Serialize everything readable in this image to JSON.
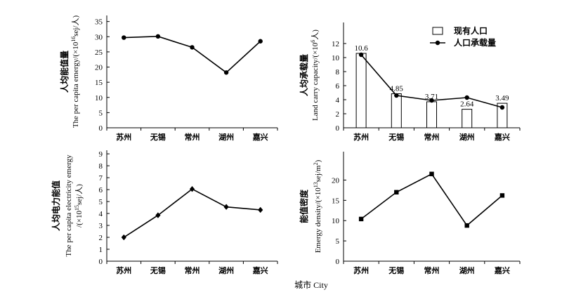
{
  "chart_data": [
    {
      "type": "line",
      "categories": [
        "苏州",
        "无锡",
        "常州",
        "湖州",
        "嘉兴"
      ],
      "series": [
        {
          "values": [
            29.7,
            30.1,
            26.5,
            18.2,
            28.5
          ],
          "marker": "circle"
        }
      ],
      "ylabel_cn": "人均能值量",
      "ylabel_en": "The per capita emergy/(×10",
      "ylabel_exp": "16",
      "ylabel_unit": "sej/人)",
      "ylim": [
        0,
        37
      ],
      "yticks": [
        0,
        5,
        10,
        15,
        20,
        25,
        30,
        35
      ]
    },
    {
      "type": "bar",
      "categories": [
        "苏州",
        "无锡",
        "常州",
        "湖州",
        "嘉兴"
      ],
      "series": [
        {
          "name": "现有人口",
          "type": "bar",
          "values": [
            10.6,
            4.85,
            3.71,
            2.64,
            3.49
          ],
          "data_labels": [
            "10.6",
            "4.85",
            "3.71",
            "2.64",
            "3.49"
          ]
        },
        {
          "name": "人口承载量",
          "type": "line",
          "values": [
            10.4,
            4.6,
            3.9,
            4.3,
            2.9
          ],
          "marker": "circle"
        }
      ],
      "ylabel_cn": "人均承载量",
      "ylabel_en": "Land carry capacity/(×10",
      "ylabel_exp": "6",
      "ylabel_unit": "人)",
      "ylim": [
        0,
        15
      ],
      "yticks": [
        0,
        2,
        4,
        6,
        8,
        10,
        12
      ],
      "legend": "top-right"
    },
    {
      "type": "line",
      "categories": [
        "苏州",
        "无锡",
        "常州",
        "湖州",
        "嘉兴"
      ],
      "series": [
        {
          "values": [
            2.0,
            3.85,
            6.05,
            4.55,
            4.3
          ],
          "marker": "diamond"
        }
      ],
      "ylabel_cn": "人均电力能值",
      "ylabel_en": "The per capita electricity emergy",
      "ylabel_en2": "/(×10",
      "ylabel_exp": "15",
      "ylabel_unit": "sej/人)",
      "ylim": [
        0,
        9.3
      ],
      "yticks": [
        0,
        1,
        2,
        3,
        4,
        5,
        6,
        7,
        8,
        9
      ]
    },
    {
      "type": "line",
      "categories": [
        "苏州",
        "无锡",
        "常州",
        "湖州",
        "嘉兴"
      ],
      "series": [
        {
          "values": [
            10.4,
            17.0,
            21.5,
            8.8,
            16.2
          ],
          "marker": "square"
        }
      ],
      "ylabel_cn": "能值密度",
      "ylabel_en": "Emergy density/(×10",
      "ylabel_exp": "13",
      "ylabel_unit": "sej/m",
      "ylabel_exp2": "2",
      "ylabel_tail": ")",
      "ylim": [
        0,
        27
      ],
      "yticks": [
        0,
        5,
        10,
        15,
        20
      ]
    }
  ],
  "xtitle": "城市 City"
}
